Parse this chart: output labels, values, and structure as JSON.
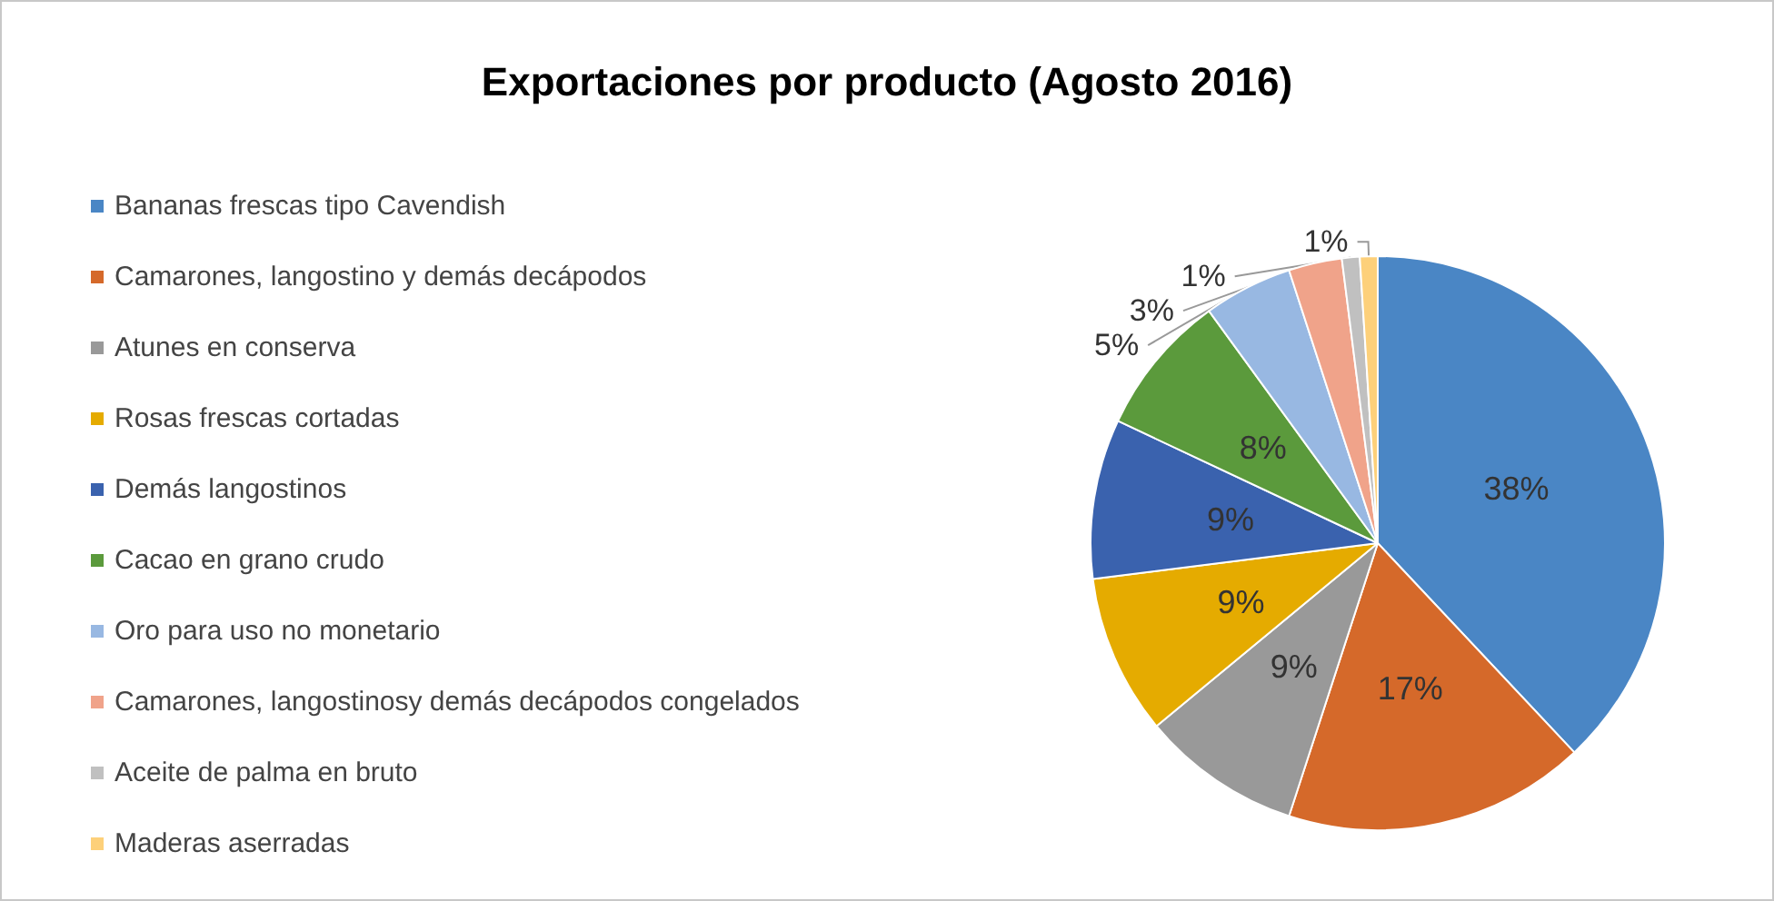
{
  "chart_data": {
    "type": "pie",
    "title": "Exportaciones por producto (Agosto 2016)",
    "categories": [
      "Bananas frescas tipo Cavendish",
      "Camarones, langostino y demás decápodos",
      "Atunes en conserva",
      "Rosas frescas cortadas",
      "Demás langostinos",
      "Cacao en grano crudo",
      "Oro para uso no monetario",
      "Camarones, langostinosy demás decápodos congelados",
      "Aceite de palma en bruto",
      "Maderas aserradas"
    ],
    "values": [
      38,
      17,
      9,
      9,
      9,
      8,
      5,
      3,
      1,
      1
    ],
    "value_labels": [
      "38%",
      "17%",
      "9%",
      "9%",
      "9%",
      "8%",
      "5%",
      "3%",
      "1%",
      "1%"
    ],
    "colors": [
      "#4a86c5",
      "#d5692a",
      "#999999",
      "#e5ab00",
      "#3a62ae",
      "#5b9a3c",
      "#98b8e2",
      "#f0a38a",
      "#c0c0c0",
      "#fdd07a"
    ],
    "legend": "left"
  }
}
